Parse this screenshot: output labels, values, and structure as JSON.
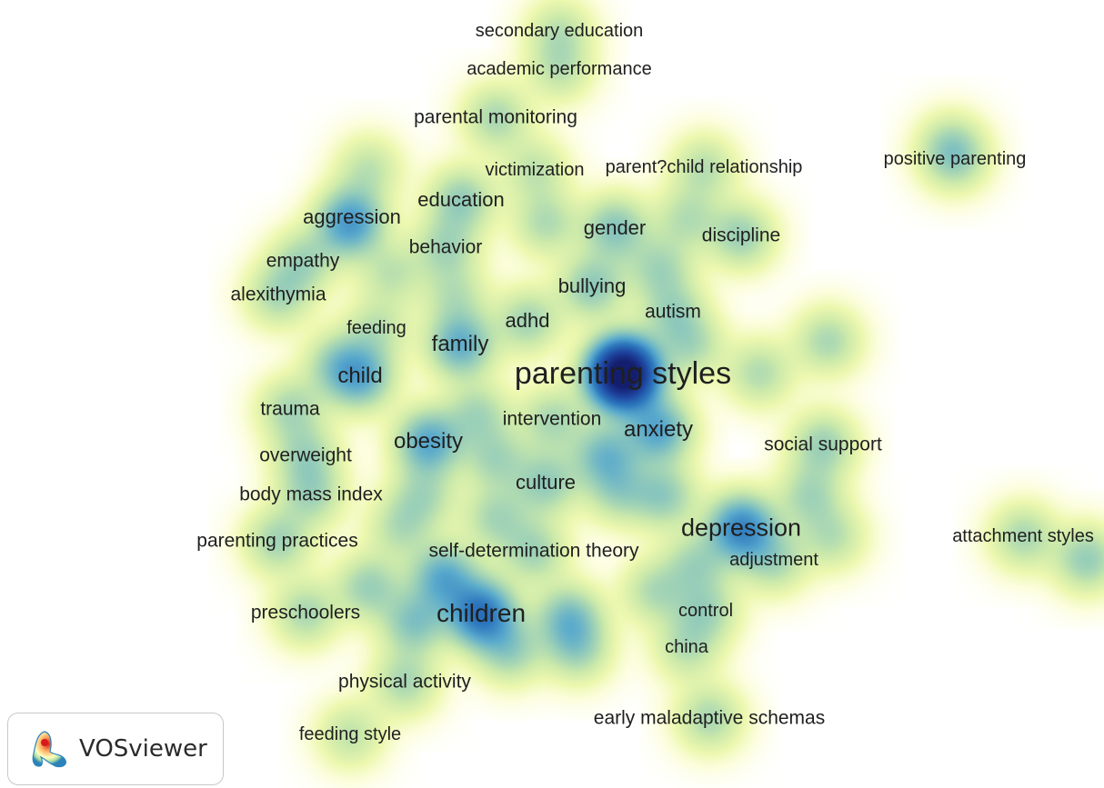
{
  "app": {
    "name": "VOSviewer"
  },
  "visualization": "density",
  "terms": [
    {
      "id": "secondary-education",
      "label": "secondary education",
      "weight": 1
    },
    {
      "id": "academic-performance",
      "label": "academic performance",
      "weight": 1
    },
    {
      "id": "parental-monitoring",
      "label": "parental monitoring",
      "weight": 1.3
    },
    {
      "id": "victimization",
      "label": "victimization",
      "weight": 1
    },
    {
      "id": "parent-child-relationship",
      "label": "parent?child relationship",
      "weight": 1.1
    },
    {
      "id": "positive-parenting",
      "label": "positive parenting",
      "weight": 1.1
    },
    {
      "id": "education",
      "label": "education",
      "weight": 1.6
    },
    {
      "id": "aggression",
      "label": "aggression",
      "weight": 1.6
    },
    {
      "id": "gender",
      "label": "gender",
      "weight": 1.8
    },
    {
      "id": "discipline",
      "label": "discipline",
      "weight": 1.5
    },
    {
      "id": "behavior",
      "label": "behavior",
      "weight": 1.3
    },
    {
      "id": "empathy",
      "label": "empathy",
      "weight": 1.3
    },
    {
      "id": "bullying",
      "label": "bullying",
      "weight": 1.7
    },
    {
      "id": "alexithymia",
      "label": "alexithymia",
      "weight": 1.3
    },
    {
      "id": "autism",
      "label": "autism",
      "weight": 1.3
    },
    {
      "id": "adhd",
      "label": "adhd",
      "weight": 1.4
    },
    {
      "id": "feeding",
      "label": "feeding",
      "weight": 1
    },
    {
      "id": "family",
      "label": "family",
      "weight": 2.4
    },
    {
      "id": "parenting-styles",
      "label": "parenting styles",
      "weight": 10
    },
    {
      "id": "child",
      "label": "child",
      "weight": 2.3
    },
    {
      "id": "trauma",
      "label": "trauma",
      "weight": 1.3
    },
    {
      "id": "intervention",
      "label": "intervention",
      "weight": 1.3
    },
    {
      "id": "anxiety",
      "label": "anxiety",
      "weight": 2.6
    },
    {
      "id": "obesity",
      "label": "obesity",
      "weight": 2.6
    },
    {
      "id": "social-support",
      "label": "social support",
      "weight": 1.5
    },
    {
      "id": "overweight",
      "label": "overweight",
      "weight": 1.3
    },
    {
      "id": "culture",
      "label": "culture",
      "weight": 1.6
    },
    {
      "id": "body-mass-index",
      "label": "body mass index",
      "weight": 1.3
    },
    {
      "id": "depression",
      "label": "depression",
      "weight": 3.5
    },
    {
      "id": "attachment-styles",
      "label": "attachment styles",
      "weight": 1.3
    },
    {
      "id": "parenting-practices",
      "label": "parenting practices",
      "weight": 1.4
    },
    {
      "id": "self-determination-theory",
      "label": "self-determination theory",
      "weight": 1.4
    },
    {
      "id": "adjustment",
      "label": "adjustment",
      "weight": 1.3
    },
    {
      "id": "preschoolers",
      "label": "preschoolers",
      "weight": 1.3
    },
    {
      "id": "children",
      "label": "children",
      "weight": 4
    },
    {
      "id": "control",
      "label": "control",
      "weight": 1.3
    },
    {
      "id": "china",
      "label": "china",
      "weight": 1.1
    },
    {
      "id": "physical-activity",
      "label": "physical activity",
      "weight": 1.3
    },
    {
      "id": "early-maladaptive-schemas",
      "label": "early maladaptive schemas",
      "weight": 1.3
    },
    {
      "id": "feeding-style",
      "label": "feeding style",
      "weight": 1
    }
  ]
}
